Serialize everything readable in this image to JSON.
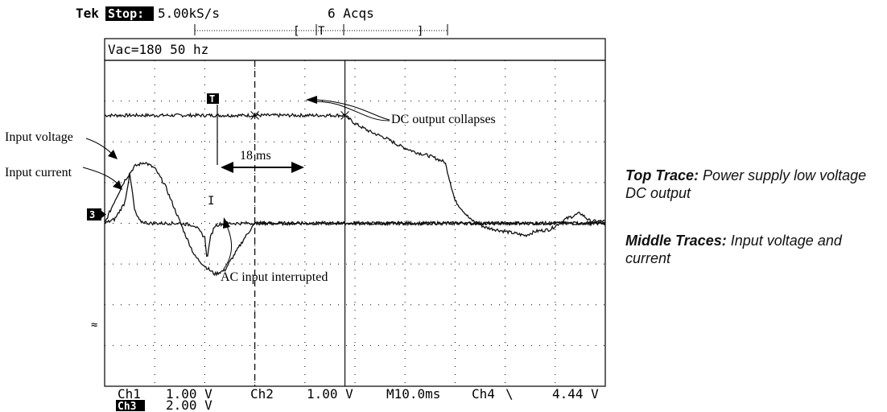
{
  "scope_header": {
    "brand": "Tek",
    "mode": "Stop:",
    "sample_rate": "5.00kS/s",
    "acquisitions": "6 Acqs",
    "bracket_left": "[",
    "trigger_marker": "T",
    "bracket_right": "]"
  },
  "measurement_box": {
    "text": "Vac=180 50 hz"
  },
  "markers": {
    "trigger_box": "T",
    "cursor_glyph": "I",
    "ch3_ground": "3",
    "tilde": "≈"
  },
  "annotations": {
    "dc_output_collapses": "DC output collapses",
    "input_voltage": "Input voltage",
    "input_current": "Input current",
    "interval": "18 ms",
    "ac_input_interrupted": "AC input interrupted"
  },
  "readouts": {
    "ch1_label": "Ch1",
    "ch1_scale": "1.00 V",
    "ch2_label": "Ch2",
    "ch2_scale": "1.00 V",
    "timebase": "M10.0ms",
    "trigger_channel": "Ch4",
    "trigger_slope": "\\",
    "trigger_level": "4.44 V",
    "ch3_label": "Ch3",
    "ch3_scale": "2.00 V"
  },
  "captions": {
    "top_trace_title": "Top Trace:",
    "top_trace_text": "Power supply low voltage DC output",
    "middle_traces_title": "Middle Traces:",
    "middle_traces_text": "Input voltage and current"
  },
  "chart_data": {
    "type": "line",
    "x_unit": "ms",
    "y_unit": "div",
    "xlim": [
      -40,
      60
    ],
    "ylim": [
      -4,
      4
    ],
    "grid": true,
    "x_major_divisions": 10,
    "y_major_divisions": 8,
    "timebase_ms_per_div": 10,
    "event_times_ms": {
      "ac_input_interrupted": -10,
      "trigger": -12,
      "dc_output_collapses": 8
    },
    "interval_ms": 18,
    "series": [
      {
        "role": "dc-output",
        "color": "#111111",
        "x": [
          -40,
          -30,
          -20,
          -12,
          -5,
          0,
          5,
          8,
          10,
          13,
          16,
          19,
          22,
          25,
          28,
          30,
          33,
          36,
          40,
          44,
          46,
          49,
          52,
          55,
          57,
          60
        ],
        "y": [
          2.65,
          2.65,
          2.65,
          2.65,
          2.65,
          2.65,
          2.65,
          2.65,
          2.45,
          2.25,
          2.1,
          1.9,
          1.75,
          1.65,
          1.5,
          0.55,
          0.1,
          -0.1,
          -0.2,
          -0.3,
          -0.2,
          -0.15,
          0.1,
          0.25,
          0.05,
          0.05
        ]
      },
      {
        "role": "input-voltage",
        "color": "#111111",
        "x": [
          -40,
          -38,
          -36,
          -34,
          -32,
          -30,
          -28,
          -26,
          -24,
          -22,
          -20,
          -18,
          -16,
          -14,
          -12,
          -10,
          -8,
          -5,
          0,
          10,
          20,
          30,
          40,
          50,
          60
        ],
        "y": [
          0.0,
          0.55,
          1.05,
          1.4,
          1.5,
          1.35,
          0.95,
          0.35,
          -0.25,
          -0.8,
          -1.05,
          -1.25,
          -1.15,
          -0.75,
          -0.35,
          0.0,
          0.0,
          0.0,
          0.0,
          0.0,
          0.0,
          0.0,
          0.0,
          0.0,
          0.0
        ]
      },
      {
        "role": "input-current",
        "color": "#111111",
        "x": [
          -40,
          -38,
          -36,
          -35,
          -34.5,
          -34,
          -33,
          -31,
          -29,
          -27,
          -25,
          -22,
          -20,
          -19.5,
          -19,
          -18,
          -16,
          -14,
          -12,
          -10,
          0,
          10,
          20,
          30,
          40,
          50,
          60
        ],
        "y": [
          0.0,
          0.1,
          0.5,
          1.2,
          0.8,
          0.3,
          0.05,
          0.0,
          0.0,
          0.0,
          0.0,
          -0.05,
          -0.35,
          -0.9,
          -0.4,
          -0.05,
          0.0,
          0.0,
          0.0,
          0.0,
          0.0,
          0.0,
          0.0,
          0.0,
          0.0,
          0.0,
          0.0
        ]
      }
    ]
  }
}
